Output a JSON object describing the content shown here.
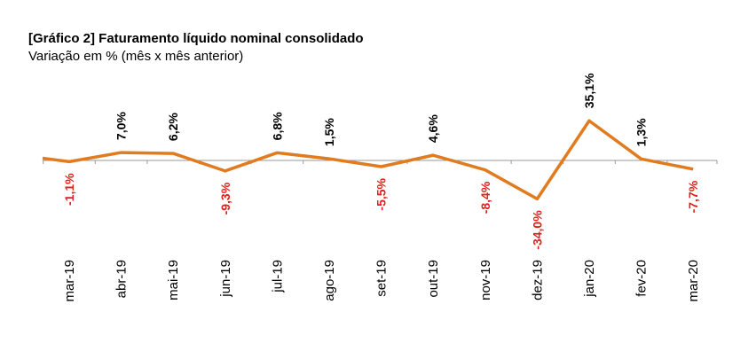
{
  "chart_data": {
    "type": "line",
    "title": "[Gráfico 2] Faturamento líquido nominal consolidado",
    "subtitle": "Variação em % (mês x mês anterior)",
    "categories": [
      null,
      "mar-19",
      "abr-19",
      "mai-19",
      "jun-19",
      "jul-19",
      "ago-19",
      "set-19",
      "out-19",
      "nov-19",
      "dez-19",
      "jan-20",
      "fev-20",
      "mar-20"
    ],
    "values": [
      2,
      -1.1,
      7.0,
      6.2,
      -9.3,
      6.8,
      1.5,
      -5.5,
      4.6,
      -8.4,
      -34.0,
      35.1,
      1.3,
      -7.7
    ],
    "value_labels": [
      null,
      "-1,1%",
      "7,0%",
      "6,2%",
      "-9,3%",
      "6,8%",
      "1,5%",
      "-5,5%",
      "4,6%",
      "-8,4%",
      "-34,0%",
      "35,1%",
      "1,3%",
      "-7,7%"
    ],
    "color": "#e07b20",
    "negative_label_color": "#e0201a",
    "ylim": [
      -40,
      40
    ]
  }
}
